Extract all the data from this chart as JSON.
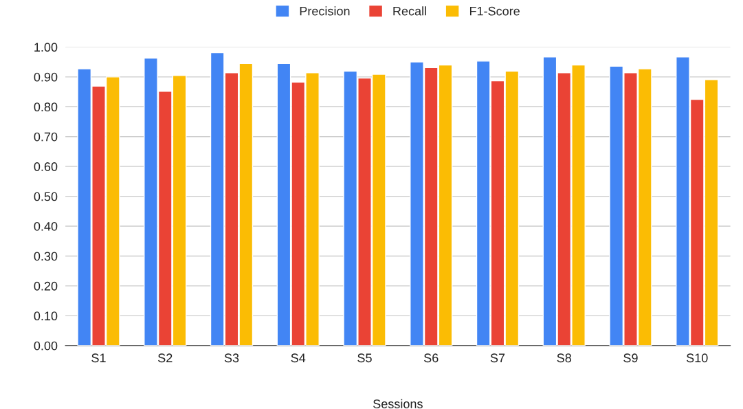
{
  "chart_data": {
    "type": "bar",
    "xlabel": "Sessions",
    "categories": [
      "S1",
      "S2",
      "S3",
      "S4",
      "S5",
      "S6",
      "S7",
      "S8",
      "S9",
      "S10"
    ],
    "series": [
      {
        "name": "Precision",
        "color": "#4285f4",
        "values": [
          0.927,
          0.963,
          0.981,
          0.945,
          0.919,
          0.95,
          0.953,
          0.967,
          0.936,
          0.967
        ]
      },
      {
        "name": "Recall",
        "color": "#ea4335",
        "values": [
          0.869,
          0.852,
          0.914,
          0.882,
          0.896,
          0.931,
          0.887,
          0.914,
          0.914,
          0.825
        ]
      },
      {
        "name": "F1-Score",
        "color": "#fbbc04",
        "values": [
          0.9,
          0.905,
          0.945,
          0.914,
          0.909,
          0.94,
          0.919,
          0.94,
          0.927,
          0.891
        ]
      }
    ],
    "ylim": [
      0,
      1.0
    ],
    "yticks": [
      {
        "value": 0,
        "label": "0.00"
      },
      {
        "value": 0.1,
        "label": "0.10"
      },
      {
        "value": 0.2,
        "label": "0.20"
      },
      {
        "value": 0.3,
        "label": "0.30"
      },
      {
        "value": 0.4,
        "label": "0.40"
      },
      {
        "value": 0.5,
        "label": "0.50"
      },
      {
        "value": 0.6,
        "label": "0.60"
      },
      {
        "value": 0.7,
        "label": "0.70"
      },
      {
        "value": 0.8,
        "label": "0.80"
      },
      {
        "value": 0.9,
        "label": "0.90"
      },
      {
        "value": 1.0,
        "label": "1.00"
      }
    ],
    "grid": "y",
    "legend": "top"
  }
}
